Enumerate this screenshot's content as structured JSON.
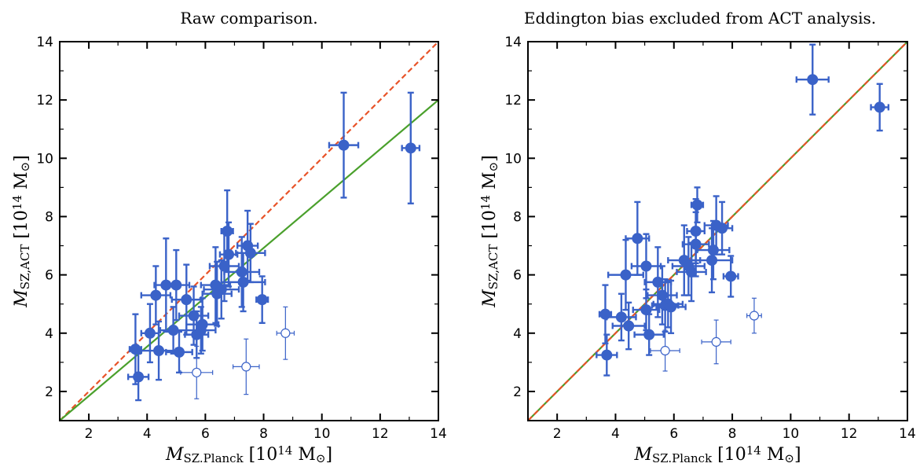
{
  "figure": {
    "background": "#ffffff"
  },
  "colors": {
    "points": "#3a62c8",
    "fit": "#4aa02c",
    "one_to_one": "#e8542a"
  },
  "chart_data": [
    {
      "type": "scatter",
      "title": "Raw comparison.",
      "xlabel": {
        "main": "M",
        "sub": "SZ.Planck",
        "unit": " [10",
        "exp": "14",
        "unit2": " M",
        "sun": "⊙",
        "close": "]"
      },
      "ylabel": {
        "main": "M",
        "sub": "SZ,ACT",
        "unit": " [10",
        "exp": "14",
        "unit2": " M",
        "sun": "⊙",
        "close": "]"
      },
      "xlim": [
        1,
        14
      ],
      "ylim": [
        1,
        14
      ],
      "xticks": [
        2,
        4,
        6,
        8,
        10,
        12,
        14
      ],
      "yticks": [
        2,
        4,
        6,
        8,
        10,
        12,
        14
      ],
      "minor_ticks": [
        3,
        5,
        7,
        9,
        11,
        13
      ],
      "lines": [
        {
          "style": "dashed",
          "color_key": "one_to_one",
          "x": [
            1,
            14
          ],
          "y": [
            1,
            14
          ]
        },
        {
          "style": "solid",
          "color_key": "fit",
          "x": [
            1,
            14
          ],
          "y": [
            1,
            12
          ]
        }
      ],
      "filled": [
        {
          "x": 3.6,
          "y": 3.45,
          "xe": 0.2,
          "ye": 1.2
        },
        {
          "x": 3.7,
          "y": 2.5,
          "xe": 0.35,
          "ye": 0.8
        },
        {
          "x": 4.1,
          "y": 4.0,
          "xe": 0.3,
          "ye": 1.0
        },
        {
          "x": 4.3,
          "y": 5.3,
          "xe": 0.5,
          "ye": 1.0
        },
        {
          "x": 4.4,
          "y": 3.4,
          "xe": 0.6,
          "ye": 1.0
        },
        {
          "x": 4.65,
          "y": 5.65,
          "xe": 0.4,
          "ye": 1.6
        },
        {
          "x": 4.9,
          "y": 4.1,
          "xe": 0.45,
          "ye": 0.8
        },
        {
          "x": 5.0,
          "y": 5.65,
          "xe": 0.45,
          "ye": 1.2
        },
        {
          "x": 5.1,
          "y": 3.35,
          "xe": 0.45,
          "ye": 0.7
        },
        {
          "x": 5.35,
          "y": 5.15,
          "xe": 0.5,
          "ye": 1.2
        },
        {
          "x": 5.6,
          "y": 4.6,
          "xe": 0.5,
          "ye": 1.0
        },
        {
          "x": 5.7,
          "y": 3.95,
          "xe": 0.4,
          "ye": 0.8
        },
        {
          "x": 5.85,
          "y": 4.1,
          "xe": 0.5,
          "ye": 0.8
        },
        {
          "x": 5.9,
          "y": 4.3,
          "xe": 0.55,
          "ye": 0.9
        },
        {
          "x": 6.35,
          "y": 5.65,
          "xe": 0.5,
          "ye": 1.3
        },
        {
          "x": 6.4,
          "y": 5.35,
          "xe": 0.5,
          "ye": 1.1
        },
        {
          "x": 6.55,
          "y": 5.5,
          "xe": 0.6,
          "ye": 1.0
        },
        {
          "x": 6.65,
          "y": 6.3,
          "xe": 0.5,
          "ye": 1.2
        },
        {
          "x": 6.75,
          "y": 7.5,
          "xe": 0.2,
          "ye": 1.4
        },
        {
          "x": 6.8,
          "y": 6.7,
          "xe": 0.3,
          "ye": 1.1
        },
        {
          "x": 7.25,
          "y": 6.1,
          "xe": 0.6,
          "ye": 1.2
        },
        {
          "x": 7.3,
          "y": 5.75,
          "xe": 0.75,
          "ye": 1.0
        },
        {
          "x": 7.45,
          "y": 7.0,
          "xe": 0.35,
          "ye": 1.2
        },
        {
          "x": 7.55,
          "y": 6.75,
          "xe": 0.5,
          "ye": 1.0
        },
        {
          "x": 7.95,
          "y": 5.15,
          "xe": 0.2,
          "ye": 0.8
        },
        {
          "x": 10.75,
          "y": 10.45,
          "xe": 0.5,
          "ye": 1.8
        },
        {
          "x": 13.05,
          "y": 10.35,
          "xe": 0.3,
          "ye": 1.9
        }
      ],
      "open": [
        {
          "x": 5.7,
          "y": 2.65,
          "xe": 0.55,
          "ye": 0.9
        },
        {
          "x": 7.4,
          "y": 2.85,
          "xe": 0.45,
          "ye": 0.95
        },
        {
          "x": 8.75,
          "y": 4.0,
          "xe": 0.3,
          "ye": 0.9
        }
      ]
    },
    {
      "type": "scatter",
      "title": "Eddington bias excluded from ACT analysis.",
      "xlabel": {
        "main": "M",
        "sub": "SZ.Planck",
        "unit": " [10",
        "exp": "14",
        "unit2": " M",
        "sun": "⊙",
        "close": "]"
      },
      "ylabel": {
        "main": "M",
        "sub": "SZ,ACT",
        "unit": " [10",
        "exp": "14",
        "unit2": " M",
        "sun": "⊙",
        "close": "]"
      },
      "xlim": [
        1,
        14
      ],
      "ylim": [
        1,
        14
      ],
      "xticks": [
        2,
        4,
        6,
        8,
        10,
        12,
        14
      ],
      "yticks": [
        2,
        4,
        6,
        8,
        10,
        12,
        14
      ],
      "minor_ticks": [
        3,
        5,
        7,
        9,
        11,
        13
      ],
      "lines": [
        {
          "style": "solid",
          "color_key": "fit",
          "x": [
            1,
            14
          ],
          "y": [
            1,
            14
          ]
        },
        {
          "style": "dashed",
          "color_key": "one_to_one",
          "x": [
            1,
            14
          ],
          "y": [
            1,
            14
          ]
        }
      ],
      "filled": [
        {
          "x": 3.65,
          "y": 4.65,
          "xe": 0.2,
          "ye": 1.0
        },
        {
          "x": 3.7,
          "y": 3.25,
          "xe": 0.35,
          "ye": 0.7
        },
        {
          "x": 4.2,
          "y": 4.55,
          "xe": 0.5,
          "ye": 0.8
        },
        {
          "x": 4.35,
          "y": 6.0,
          "xe": 0.6,
          "ye": 1.2
        },
        {
          "x": 4.45,
          "y": 4.25,
          "xe": 0.55,
          "ye": 0.8
        },
        {
          "x": 4.75,
          "y": 7.25,
          "xe": 0.4,
          "ye": 1.25
        },
        {
          "x": 5.05,
          "y": 4.8,
          "xe": 0.45,
          "ye": 0.7
        },
        {
          "x": 5.05,
          "y": 6.3,
          "xe": 0.5,
          "ye": 1.1
        },
        {
          "x": 5.15,
          "y": 3.95,
          "xe": 0.5,
          "ye": 0.7
        },
        {
          "x": 5.45,
          "y": 5.75,
          "xe": 0.45,
          "ye": 1.2
        },
        {
          "x": 5.6,
          "y": 5.3,
          "xe": 0.5,
          "ye": 1.0
        },
        {
          "x": 5.7,
          "y": 4.95,
          "xe": 0.45,
          "ye": 0.9
        },
        {
          "x": 5.8,
          "y": 5.0,
          "xe": 0.5,
          "ye": 0.8
        },
        {
          "x": 5.9,
          "y": 4.9,
          "xe": 0.5,
          "ye": 0.9
        },
        {
          "x": 6.35,
          "y": 6.5,
          "xe": 0.55,
          "ye": 1.2
        },
        {
          "x": 6.5,
          "y": 6.3,
          "xe": 0.55,
          "ye": 1.0
        },
        {
          "x": 6.6,
          "y": 6.1,
          "xe": 0.5,
          "ye": 1.0
        },
        {
          "x": 6.75,
          "y": 7.5,
          "xe": 0.3,
          "ye": 1.1
        },
        {
          "x": 6.75,
          "y": 7.05,
          "xe": 0.45,
          "ye": 1.1
        },
        {
          "x": 6.8,
          "y": 8.4,
          "xe": 0.2,
          "ye": 0.6
        },
        {
          "x": 7.3,
          "y": 6.5,
          "xe": 0.7,
          "ye": 1.1
        },
        {
          "x": 7.35,
          "y": 6.85,
          "xe": 0.55,
          "ye": 1.0
        },
        {
          "x": 7.45,
          "y": 7.7,
          "xe": 0.4,
          "ye": 1.0
        },
        {
          "x": 7.65,
          "y": 7.6,
          "xe": 0.35,
          "ye": 0.9
        },
        {
          "x": 7.95,
          "y": 5.95,
          "xe": 0.25,
          "ye": 0.7
        },
        {
          "x": 10.75,
          "y": 12.7,
          "xe": 0.55,
          "ye": 1.2
        },
        {
          "x": 13.05,
          "y": 11.75,
          "xe": 0.3,
          "ye": 0.8
        }
      ],
      "open": [
        {
          "x": 5.7,
          "y": 3.4,
          "xe": 0.5,
          "ye": 0.7
        },
        {
          "x": 7.45,
          "y": 3.7,
          "xe": 0.5,
          "ye": 0.75
        },
        {
          "x": 8.75,
          "y": 4.6,
          "xe": 0.25,
          "ye": 0.6
        }
      ]
    }
  ]
}
